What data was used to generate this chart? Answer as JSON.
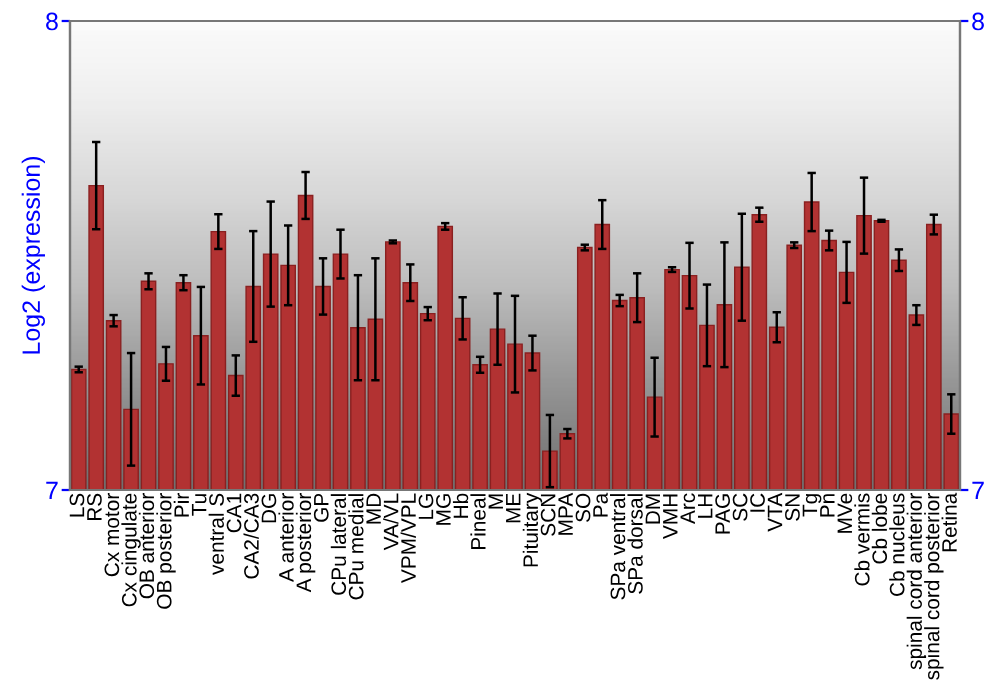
{
  "chart_data": {
    "type": "bar",
    "ylabel": "Log2 (expression)",
    "categories": [
      "LS",
      "RS",
      "Cx motor",
      "Cx cingulate",
      "OB anterior",
      "OB posterior",
      "Pir",
      "Tu",
      "ventral S",
      "CA1",
      "CA2/CA3",
      "DG",
      "A anterior",
      "A posterior",
      "GP",
      "CPu lateral",
      "CPu medial",
      "MD",
      "VA/VL",
      "VPM/VPL",
      "LG",
      "MG",
      "Hb",
      "Pineal",
      "M",
      "ME",
      "Pituitary",
      "SCN",
      "MPA",
      "SO",
      "Pa",
      "SPa ventral",
      "SPa dorsal",
      "DM",
      "VMH",
      "Arc",
      "LH",
      "PAG",
      "SC",
      "IC",
      "VTA",
      "SN",
      "Tg",
      "Pn",
      "MVe",
      "Cb vermis",
      "Cb lobe",
      "Cb nucleus",
      "spinal cord anterior",
      "spinal cord posterior",
      "Retina"
    ],
    "values": [
      7.257,
      7.649,
      7.361,
      7.172,
      7.445,
      7.269,
      7.442,
      7.329,
      7.551,
      7.244,
      7.434,
      7.503,
      7.479,
      7.628,
      7.434,
      7.503,
      7.346,
      7.364,
      7.529,
      7.442,
      7.376,
      7.562,
      7.366,
      7.267,
      7.343,
      7.311,
      7.292,
      7.083,
      7.12,
      7.517,
      7.566,
      7.404,
      7.41,
      7.198,
      7.47,
      7.457,
      7.351,
      7.395,
      7.475,
      7.587,
      7.347,
      7.522,
      7.614,
      7.532,
      7.464,
      7.585,
      7.574,
      7.49,
      7.373,
      7.566,
      7.162
    ],
    "errors": [
      0.006,
      0.093,
      0.012,
      0.12,
      0.017,
      0.036,
      0.016,
      0.104,
      0.037,
      0.043,
      0.118,
      0.112,
      0.085,
      0.05,
      0.06,
      0.052,
      0.112,
      0.13,
      0.003,
      0.039,
      0.014,
      0.007,
      0.045,
      0.017,
      0.076,
      0.103,
      0.037,
      0.077,
      0.01,
      0.006,
      0.052,
      0.012,
      0.052,
      0.084,
      0.005,
      0.07,
      0.087,
      0.133,
      0.114,
      0.015,
      0.032,
      0.006,
      0.062,
      0.021,
      0.065,
      0.081,
      0.002,
      0.023,
      0.021,
      0.021,
      0.042
    ],
    "color": "#b23232",
    "ylim": [
      7,
      8
    ],
    "yticks": [
      7,
      8
    ],
    "y2lim": [
      7,
      8
    ],
    "y2ticks": [
      7,
      8
    ],
    "grid": false,
    "legend": false
  }
}
